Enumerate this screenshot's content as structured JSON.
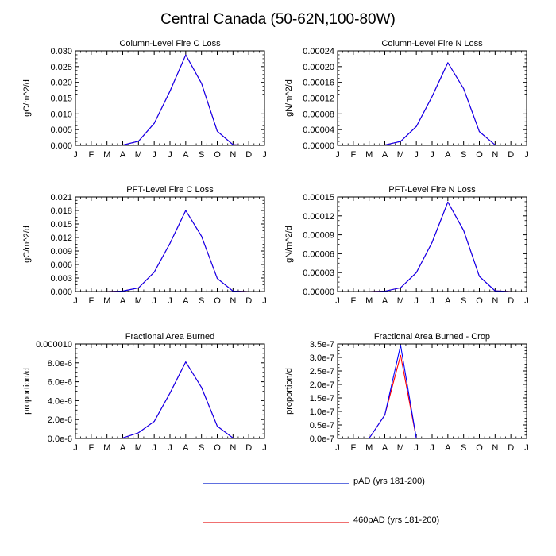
{
  "title": "Central Canada (50-62N,100-80W)",
  "legend": [
    {
      "label": "pAD (yrs 181-200)",
      "color": "#0000ff"
    },
    {
      "label": "460pAD (yrs 181-200)",
      "color": "#ff0000"
    }
  ],
  "chart_data": [
    {
      "type": "line",
      "title": "Column-Level Fire C Loss",
      "ylabel": "gC/m^2/d",
      "categories": [
        "J",
        "F",
        "M",
        "A",
        "M",
        "J",
        "J",
        "A",
        "S",
        "O",
        "N",
        "D",
        "J"
      ],
      "ylim": [
        0,
        0.03
      ],
      "yticks": [
        "0.000",
        "0.005",
        "0.010",
        "0.015",
        "0.020",
        "0.025",
        "0.030"
      ],
      "series": [
        {
          "name": "pAD (yrs 181-200)",
          "values": [
            0,
            0,
            0,
            0.0001,
            0.0013,
            0.007,
            0.0172,
            0.0287,
            0.0197,
            0.0045,
            0.0002,
            0,
            0
          ]
        },
        {
          "name": "460pAD (yrs 181-200)",
          "values": [
            0,
            0,
            0,
            0.0001,
            0.0013,
            0.007,
            0.0172,
            0.0287,
            0.0197,
            0.0045,
            0.0002,
            0,
            0
          ]
        }
      ]
    },
    {
      "type": "line",
      "title": "Column-Level Fire N Loss",
      "ylabel": "gN/m^2/d",
      "categories": [
        "J",
        "F",
        "M",
        "A",
        "M",
        "J",
        "J",
        "A",
        "S",
        "O",
        "N",
        "D",
        "J"
      ],
      "ylim": [
        0,
        0.00024
      ],
      "yticks": [
        "0.00000",
        "0.00004",
        "0.00008",
        "0.00012",
        "0.00016",
        "0.00020",
        "0.00024"
      ],
      "series": [
        {
          "name": "pAD (yrs 181-200)",
          "values": [
            0,
            0,
            0,
            1e-06,
            1e-05,
            4.8e-05,
            0.000124,
            0.00021,
            0.000144,
            3.5e-05,
            1e-06,
            0,
            0
          ]
        },
        {
          "name": "460pAD (yrs 181-200)",
          "values": [
            0,
            0,
            0,
            1e-06,
            1e-05,
            4.8e-05,
            0.000124,
            0.00021,
            0.000144,
            3.5e-05,
            1e-06,
            0,
            0
          ]
        }
      ]
    },
    {
      "type": "line",
      "title": "PFT-Level Fire C Loss",
      "ylabel": "gC/m^2/d",
      "categories": [
        "J",
        "F",
        "M",
        "A",
        "M",
        "J",
        "J",
        "A",
        "S",
        "O",
        "N",
        "D",
        "J"
      ],
      "ylim": [
        0,
        0.021
      ],
      "yticks": [
        "0.000",
        "0.003",
        "0.006",
        "0.009",
        "0.012",
        "0.015",
        "0.018",
        "0.021"
      ],
      "series": [
        {
          "name": "pAD (yrs 181-200)",
          "values": [
            0,
            0,
            0,
            0.0001,
            0.0008,
            0.0043,
            0.0107,
            0.018,
            0.0123,
            0.0029,
            0.0001,
            0,
            0
          ]
        },
        {
          "name": "460pAD (yrs 181-200)",
          "values": [
            0,
            0,
            0,
            0.0001,
            0.0008,
            0.0043,
            0.0107,
            0.018,
            0.0123,
            0.0029,
            0.0001,
            0,
            0
          ]
        }
      ]
    },
    {
      "type": "line",
      "title": "PFT-Level Fire N Loss",
      "ylabel": "gN/m^2/d",
      "categories": [
        "J",
        "F",
        "M",
        "A",
        "M",
        "J",
        "J",
        "A",
        "S",
        "O",
        "N",
        "D",
        "J"
      ],
      "ylim": [
        0,
        0.00015
      ],
      "yticks": [
        "0.00000",
        "0.00003",
        "0.00006",
        "0.00009",
        "0.00012",
        "0.00015"
      ],
      "series": [
        {
          "name": "pAD (yrs 181-200)",
          "values": [
            0,
            0,
            0,
            5e-07,
            6e-06,
            3e-05,
            7.8e-05,
            0.000142,
            9.7e-05,
            2.4e-05,
            1e-06,
            0,
            0
          ]
        },
        {
          "name": "460pAD (yrs 181-200)",
          "values": [
            0,
            0,
            0,
            5e-07,
            6e-06,
            3e-05,
            7.8e-05,
            0.000142,
            9.7e-05,
            2.4e-05,
            1e-06,
            0,
            0
          ]
        }
      ]
    },
    {
      "type": "line",
      "title": "Fractional Area Burned",
      "ylabel": "proportion/d",
      "categories": [
        "J",
        "F",
        "M",
        "A",
        "M",
        "J",
        "J",
        "A",
        "S",
        "O",
        "N",
        "D",
        "J"
      ],
      "ylim": [
        0,
        1e-05
      ],
      "yticks": [
        "0.0e-6",
        "2.0e-6",
        "4.0e-6",
        "6.0e-6",
        "8.0e-6",
        "0.000010"
      ],
      "series": [
        {
          "name": "pAD (yrs 181-200)",
          "values": [
            0,
            0,
            0,
            5e-08,
            6e-07,
            1.8e-06,
            4.8e-06,
            8.1e-06,
            5.4e-06,
            1.3e-06,
            5e-08,
            0,
            0
          ]
        },
        {
          "name": "460pAD (yrs 181-200)",
          "values": [
            0,
            0,
            0,
            5e-08,
            6e-07,
            1.8e-06,
            4.8e-06,
            8.1e-06,
            5.4e-06,
            1.3e-06,
            5e-08,
            0,
            0
          ]
        }
      ]
    },
    {
      "type": "line",
      "title": "Fractional Area Burned - Crop",
      "ylabel": "proportion/d",
      "categories": [
        "J",
        "F",
        "M",
        "A",
        "M",
        "J",
        "J",
        "A",
        "S",
        "O",
        "N",
        "D",
        "J"
      ],
      "ylim": [
        0,
        3.5e-07
      ],
      "yticks": [
        "0.0e-7",
        "0.5e-7",
        "1.0e-7",
        "1.5e-7",
        "2.0e-7",
        "2.5e-7",
        "3.0e-7",
        "3.5e-7"
      ],
      "series": [
        {
          "name": "pAD (yrs 181-200)",
          "values": [
            0,
            0,
            0,
            8.7e-08,
            3.45e-07,
            0,
            0,
            0,
            0,
            0,
            0,
            0,
            0
          ]
        },
        {
          "name": "460pAD (yrs 181-200)",
          "values": [
            0,
            0,
            0,
            8.7e-08,
            3.08e-07,
            0,
            0,
            0,
            0,
            0,
            0,
            0,
            0
          ]
        }
      ]
    }
  ]
}
